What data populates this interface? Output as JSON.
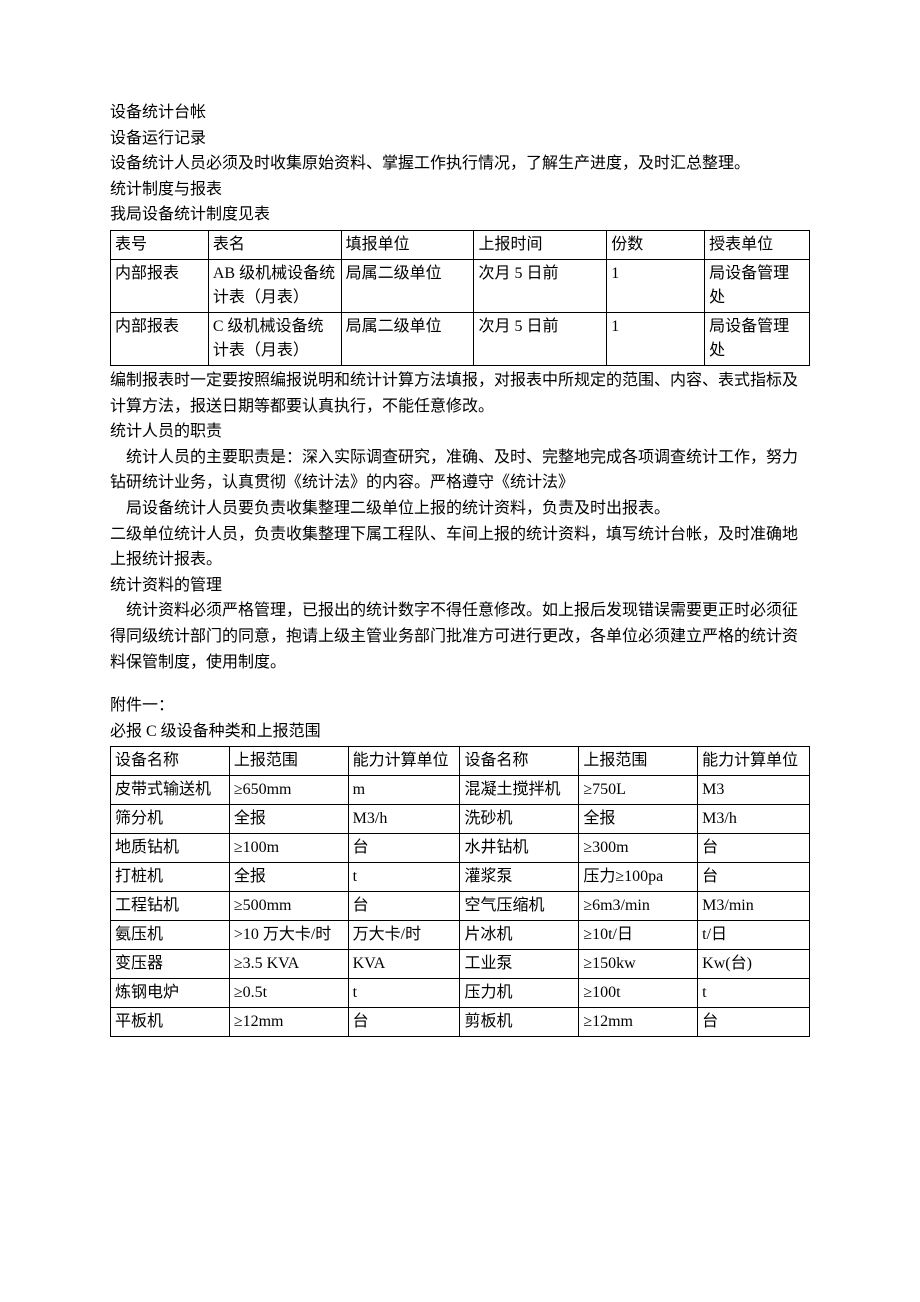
{
  "intro": {
    "lines": [
      "设备统计台帐",
      "设备运行记录",
      "设备统计人员必须及时收集原始资料、掌握工作执行情况，了解生产进度，及时汇总整理。",
      "统计制度与报表",
      "我局设备统计制度见表"
    ]
  },
  "table1": {
    "columns": [
      "表号",
      "表名",
      "填报单位",
      "上报时间",
      "份数",
      "授表单位"
    ],
    "col_widths": [
      "14%",
      "19%",
      "19%",
      "19%",
      "14%",
      "15%"
    ],
    "rows": [
      [
        "内部报表",
        "AB 级机械设备统计表（月表）",
        "局属二级单位",
        "次月 5 日前",
        "1",
        "局设备管理处"
      ],
      [
        "内部报表",
        "C 级机械设备统计表（月表）",
        "局属二级单位",
        "次月 5 日前",
        "1",
        "局设备管理处"
      ]
    ]
  },
  "middle": {
    "p1": "编制报表时一定要按照编报说明和统计计算方法填报，对报表中所规定的范围、内容、表式指标及计算方法，报送日期等都要认真执行，不能任意修改。",
    "p2": "统计人员的职责",
    "p3": "统计人员的主要职责是：深入实际调查研究，准确、及时、完整地完成各项调查统计工作，努力钻研统计业务，认真贯彻《统计法》的内容。严格遵守《统计法》",
    "p4": "局设备统计人员要负责收集整理二级单位上报的统计资料，负责及时出报表。",
    "p5": "二级单位统计人员，负责收集整理下属工程队、车间上报的统计资料，填写统计台帐，及时准确地上报统计报表。",
    "p6": "统计资料的管理",
    "p7": "统计资料必须严格管理，已报出的统计数字不得任意修改。如上报后发现错误需要更正时必须征得同级统计部门的同意，抱请上级主管业务部门批准方可进行更改，各单位必须建立严格的统计资料保管制度，使用制度。"
  },
  "appendix": {
    "title1": "附件一：",
    "title2": "必报 C 级设备种类和上报范围"
  },
  "table2": {
    "columns": [
      "设备名称",
      "上报范围",
      "能力计算单位",
      "设备名称",
      "上报范围",
      "能力计算单位"
    ],
    "col_widths": [
      "17%",
      "17%",
      "16%",
      "17%",
      "17%",
      "16%"
    ],
    "rows": [
      [
        "皮带式输送机",
        "≥650mm",
        "m",
        "混凝土搅拌机",
        "≥750L",
        "M3"
      ],
      [
        "筛分机",
        "全报",
        "M3/h",
        "洗砂机",
        "全报",
        "M3/h"
      ],
      [
        "地质钻机",
        "≥100m",
        "台",
        "水井钻机",
        "≥300m",
        "台"
      ],
      [
        "打桩机",
        "全报",
        "t",
        "灌浆泵",
        "压力≥100pa",
        "台"
      ],
      [
        "工程钻机",
        "≥500mm",
        "台",
        "空气压缩机",
        "≥6m3/min",
        "M3/min"
      ],
      [
        "氨压机",
        ">10 万大卡/时",
        "万大卡/时",
        "片冰机",
        "≥10t/日",
        "t/日"
      ],
      [
        "变压器",
        "≥3.5 KVA",
        "KVA",
        "工业泵",
        "≥150kw",
        "Kw(台)"
      ],
      [
        "炼钢电炉",
        "≥0.5t",
        "t",
        "压力机",
        "≥100t",
        "t"
      ],
      [
        "平板机",
        "≥12mm",
        "台",
        "剪板机",
        "≥12mm",
        "台"
      ]
    ]
  }
}
